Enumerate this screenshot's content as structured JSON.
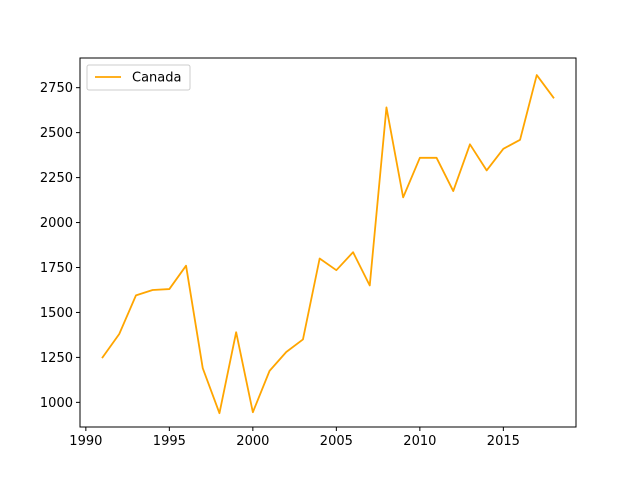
{
  "chart_data": {
    "type": "line",
    "title": "",
    "xlabel": "",
    "ylabel": "",
    "xlim": [
      1989.65,
      2019.35
    ],
    "ylim": [
      863,
      2915
    ],
    "x_ticks": [
      1990,
      1995,
      2000,
      2005,
      2010,
      2015
    ],
    "y_ticks": [
      1000,
      1250,
      1500,
      1750,
      2000,
      2250,
      2500,
      2750
    ],
    "grid": false,
    "legend_position": "top-left",
    "series": [
      {
        "name": "Canada",
        "color": "#ffa500",
        "x": [
          1991,
          1992,
          1993,
          1994,
          1995,
          1996,
          1997,
          1998,
          1999,
          2000,
          2001,
          2002,
          2003,
          2004,
          2005,
          2006,
          2007,
          2008,
          2009,
          2010,
          2011,
          2012,
          2013,
          2014,
          2015,
          2016,
          2017,
          2018
        ],
        "y": [
          1250,
          1380,
          1595,
          1625,
          1630,
          1760,
          1190,
          940,
          1390,
          945,
          1175,
          1280,
          1350,
          1800,
          1735,
          1835,
          1650,
          2640,
          2140,
          2360,
          2360,
          2175,
          2435,
          2290,
          2410,
          2460,
          2820,
          2695
        ]
      }
    ]
  }
}
